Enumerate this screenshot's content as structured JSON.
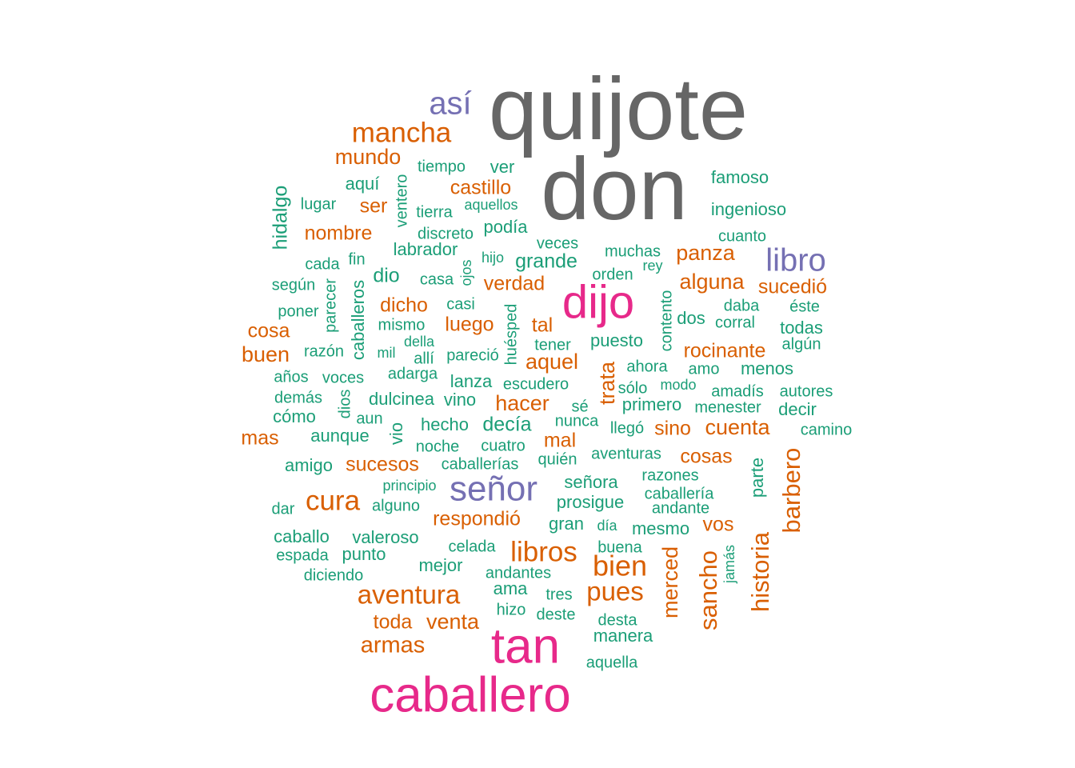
{
  "chart_data": {
    "type": "wordcloud",
    "colors": {
      "gray": "#666666",
      "magenta": "#E7298A",
      "purple": "#7570B3",
      "orange": "#D95F02",
      "green": "#1B9E77"
    },
    "words": [
      {
        "text": "quijote",
        "group": "gray"
      },
      {
        "text": "don",
        "group": "gray"
      },
      {
        "text": "dijo",
        "group": "magenta"
      },
      {
        "text": "tan",
        "group": "magenta"
      },
      {
        "text": "caballero",
        "group": "magenta"
      },
      {
        "text": "así",
        "group": "purple"
      },
      {
        "text": "libro",
        "group": "purple"
      },
      {
        "text": "señor",
        "group": "purple"
      },
      {
        "text": "mancha",
        "group": "orange"
      },
      {
        "text": "mundo",
        "group": "orange"
      },
      {
        "text": "castillo",
        "group": "orange"
      },
      {
        "text": "ser",
        "group": "orange"
      },
      {
        "text": "nombre",
        "group": "orange"
      },
      {
        "text": "panza",
        "group": "orange"
      },
      {
        "text": "alguna",
        "group": "orange"
      },
      {
        "text": "sucedió",
        "group": "orange"
      },
      {
        "text": "verdad",
        "group": "orange"
      },
      {
        "text": "dicho",
        "group": "orange"
      },
      {
        "text": "luego",
        "group": "orange"
      },
      {
        "text": "tal",
        "group": "orange"
      },
      {
        "text": "cosa",
        "group": "orange"
      },
      {
        "text": "buen",
        "group": "orange"
      },
      {
        "text": "aquel",
        "group": "orange"
      },
      {
        "text": "rocinante",
        "group": "orange"
      },
      {
        "text": "trata",
        "group": "orange"
      },
      {
        "text": "hacer",
        "group": "orange"
      },
      {
        "text": "sino",
        "group": "orange"
      },
      {
        "text": "cuenta",
        "group": "orange"
      },
      {
        "text": "mas",
        "group": "orange"
      },
      {
        "text": "mal",
        "group": "orange"
      },
      {
        "text": "sucesos",
        "group": "orange"
      },
      {
        "text": "cosas",
        "group": "orange"
      },
      {
        "text": "barbero",
        "group": "orange"
      },
      {
        "text": "cura",
        "group": "orange"
      },
      {
        "text": "respondió",
        "group": "orange"
      },
      {
        "text": "vos",
        "group": "orange"
      },
      {
        "text": "libros",
        "group": "orange"
      },
      {
        "text": "bien",
        "group": "orange"
      },
      {
        "text": "merced",
        "group": "orange"
      },
      {
        "text": "sancho",
        "group": "orange"
      },
      {
        "text": "historia",
        "group": "orange"
      },
      {
        "text": "aventura",
        "group": "orange"
      },
      {
        "text": "pues",
        "group": "orange"
      },
      {
        "text": "toda",
        "group": "orange"
      },
      {
        "text": "venta",
        "group": "orange"
      },
      {
        "text": "armas",
        "group": "orange"
      },
      {
        "text": "tiempo",
        "group": "green"
      },
      {
        "text": "ver",
        "group": "green"
      },
      {
        "text": "famoso",
        "group": "green"
      },
      {
        "text": "aquí",
        "group": "green"
      },
      {
        "text": "hidalgo",
        "group": "green"
      },
      {
        "text": "ventero",
        "group": "green"
      },
      {
        "text": "lugar",
        "group": "green"
      },
      {
        "text": "tierra",
        "group": "green"
      },
      {
        "text": "aquellos",
        "group": "green"
      },
      {
        "text": "ingenioso",
        "group": "green"
      },
      {
        "text": "podía",
        "group": "green"
      },
      {
        "text": "discreto",
        "group": "green"
      },
      {
        "text": "cuanto",
        "group": "green"
      },
      {
        "text": "veces",
        "group": "green"
      },
      {
        "text": "labrador",
        "group": "green"
      },
      {
        "text": "muchas",
        "group": "green"
      },
      {
        "text": "cada",
        "group": "green"
      },
      {
        "text": "fin",
        "group": "green"
      },
      {
        "text": "hijo",
        "group": "green"
      },
      {
        "text": "grande",
        "group": "green"
      },
      {
        "text": "rey",
        "group": "green"
      },
      {
        "text": "ojos",
        "group": "green"
      },
      {
        "text": "dio",
        "group": "green"
      },
      {
        "text": "casa",
        "group": "green"
      },
      {
        "text": "orden",
        "group": "green"
      },
      {
        "text": "según",
        "group": "green"
      },
      {
        "text": "parecer",
        "group": "green"
      },
      {
        "text": "caballeros",
        "group": "green"
      },
      {
        "text": "casi",
        "group": "green"
      },
      {
        "text": "contento",
        "group": "green"
      },
      {
        "text": "daba",
        "group": "green"
      },
      {
        "text": "éste",
        "group": "green"
      },
      {
        "text": "poner",
        "group": "green"
      },
      {
        "text": "mismo",
        "group": "green"
      },
      {
        "text": "huésped",
        "group": "green"
      },
      {
        "text": "dos",
        "group": "green"
      },
      {
        "text": "corral",
        "group": "green"
      },
      {
        "text": "todas",
        "group": "green"
      },
      {
        "text": "della",
        "group": "green"
      },
      {
        "text": "puesto",
        "group": "green"
      },
      {
        "text": "algún",
        "group": "green"
      },
      {
        "text": "razón",
        "group": "green"
      },
      {
        "text": "mil",
        "group": "green"
      },
      {
        "text": "allí",
        "group": "green"
      },
      {
        "text": "pareció",
        "group": "green"
      },
      {
        "text": "tener",
        "group": "green"
      },
      {
        "text": "ahora",
        "group": "green"
      },
      {
        "text": "amo",
        "group": "green"
      },
      {
        "text": "menos",
        "group": "green"
      },
      {
        "text": "años",
        "group": "green"
      },
      {
        "text": "voces",
        "group": "green"
      },
      {
        "text": "adarga",
        "group": "green"
      },
      {
        "text": "lanza",
        "group": "green"
      },
      {
        "text": "escudero",
        "group": "green"
      },
      {
        "text": "sólo",
        "group": "green"
      },
      {
        "text": "modo",
        "group": "green"
      },
      {
        "text": "amadís",
        "group": "green"
      },
      {
        "text": "autores",
        "group": "green"
      },
      {
        "text": "demás",
        "group": "green"
      },
      {
        "text": "dios",
        "group": "green"
      },
      {
        "text": "dulcinea",
        "group": "green"
      },
      {
        "text": "vino",
        "group": "green"
      },
      {
        "text": "sé",
        "group": "green"
      },
      {
        "text": "primero",
        "group": "green"
      },
      {
        "text": "menester",
        "group": "green"
      },
      {
        "text": "decir",
        "group": "green"
      },
      {
        "text": "cómo",
        "group": "green"
      },
      {
        "text": "aun",
        "group": "green"
      },
      {
        "text": "hecho",
        "group": "green"
      },
      {
        "text": "decía",
        "group": "green"
      },
      {
        "text": "nunca",
        "group": "green"
      },
      {
        "text": "llegó",
        "group": "green"
      },
      {
        "text": "camino",
        "group": "green"
      },
      {
        "text": "aunque",
        "group": "green"
      },
      {
        "text": "vio",
        "group": "green"
      },
      {
        "text": "noche",
        "group": "green"
      },
      {
        "text": "cuatro",
        "group": "green"
      },
      {
        "text": "amigo",
        "group": "green"
      },
      {
        "text": "caballerías",
        "group": "green"
      },
      {
        "text": "quién",
        "group": "green"
      },
      {
        "text": "aventuras",
        "group": "green"
      },
      {
        "text": "parte",
        "group": "green"
      },
      {
        "text": "principio",
        "group": "green"
      },
      {
        "text": "señora",
        "group": "green"
      },
      {
        "text": "razones",
        "group": "green"
      },
      {
        "text": "caballería",
        "group": "green"
      },
      {
        "text": "dar",
        "group": "green"
      },
      {
        "text": "alguno",
        "group": "green"
      },
      {
        "text": "prosigue",
        "group": "green"
      },
      {
        "text": "andante",
        "group": "green"
      },
      {
        "text": "gran",
        "group": "green"
      },
      {
        "text": "día",
        "group": "green"
      },
      {
        "text": "mesmo",
        "group": "green"
      },
      {
        "text": "caballo",
        "group": "green"
      },
      {
        "text": "valeroso",
        "group": "green"
      },
      {
        "text": "celada",
        "group": "green"
      },
      {
        "text": "buena",
        "group": "green"
      },
      {
        "text": "espada",
        "group": "green"
      },
      {
        "text": "punto",
        "group": "green"
      },
      {
        "text": "jamás",
        "group": "green"
      },
      {
        "text": "diciendo",
        "group": "green"
      },
      {
        "text": "mejor",
        "group": "green"
      },
      {
        "text": "andantes",
        "group": "green"
      },
      {
        "text": "ama",
        "group": "green"
      },
      {
        "text": "tres",
        "group": "green"
      },
      {
        "text": "hizo",
        "group": "green"
      },
      {
        "text": "deste",
        "group": "green"
      },
      {
        "text": "desta",
        "group": "green"
      },
      {
        "text": "manera",
        "group": "green"
      },
      {
        "text": "aquella",
        "group": "green"
      }
    ]
  }
}
